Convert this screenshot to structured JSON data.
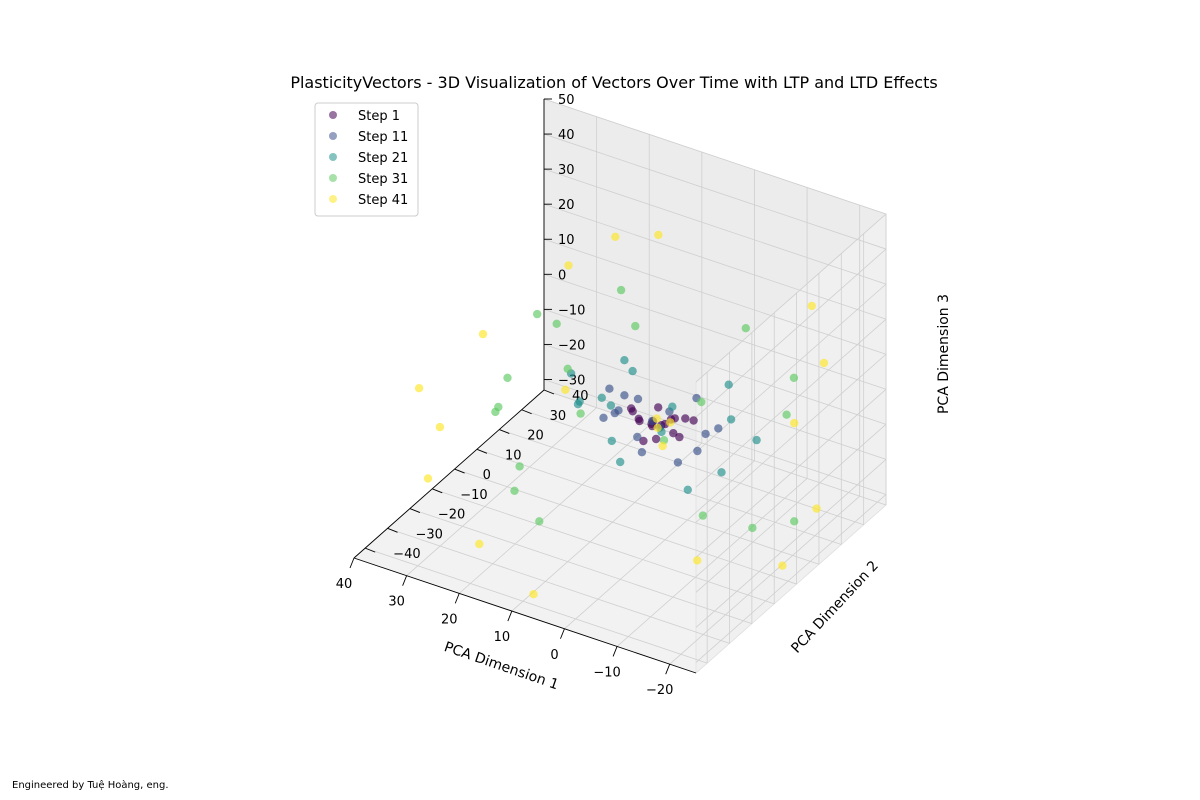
{
  "chart_data": {
    "type": "scatter",
    "projection": "3d",
    "title": "PlasticityVectors - 3D Visualization of Vectors Over Time with LTP and LTD Effects",
    "xlabel": "PCA Dimension 1",
    "ylabel": "PCA Dimension 2",
    "zlabel": "PCA Dimension 3",
    "xlim": [
      -25,
      40
    ],
    "ylim": [
      -45,
      40
    ],
    "zlim": [
      -33,
      50
    ],
    "x_ticks": [
      "−20",
      "−10",
      "0",
      "10",
      "20",
      "30",
      "40"
    ],
    "y_ticks": [
      "−40",
      "−30",
      "−20",
      "−10",
      "0",
      "10",
      "20",
      "30",
      "40"
    ],
    "z_ticks": [
      "−30",
      "−20",
      "−10",
      "0",
      "10",
      "20",
      "30",
      "40",
      "50"
    ],
    "grid": true,
    "legend_position": "top-left",
    "series": [
      {
        "name": "Step 1",
        "color": "#440154",
        "points": [
          [
            0,
            0,
            0
          ],
          [
            2,
            -1,
            -1
          ],
          [
            -1,
            2,
            1
          ],
          [
            3,
            1,
            -2
          ],
          [
            1,
            -3,
            2
          ],
          [
            -2,
            -1,
            -1
          ],
          [
            4,
            -2,
            0
          ],
          [
            2,
            3,
            -3
          ],
          [
            -3,
            2,
            2
          ],
          [
            5,
            0,
            -1
          ],
          [
            0,
            -4,
            -2
          ],
          [
            3,
            4,
            1
          ],
          [
            -4,
            -3,
            0
          ],
          [
            6,
            -1,
            2
          ],
          [
            1,
            5,
            -2
          ],
          [
            7,
            2,
            -1
          ],
          [
            -5,
            1,
            3
          ],
          [
            2,
            -5,
            -3
          ]
        ]
      },
      {
        "name": "Step 11",
        "color": "#3b528b",
        "points": [
          [
            4,
            -3,
            -4
          ],
          [
            6,
            2,
            3
          ],
          [
            -6,
            4,
            -2
          ],
          [
            8,
            -2,
            1
          ],
          [
            -2,
            -7,
            4
          ],
          [
            5,
            6,
            -5
          ],
          [
            -7,
            -2,
            -3
          ],
          [
            9,
            3,
            2
          ],
          [
            1,
            -8,
            -4
          ],
          [
            -3,
            7,
            5
          ],
          [
            10,
            -4,
            -1
          ],
          [
            7,
            -6,
            3
          ],
          [
            -8,
            5,
            0
          ],
          [
            3,
            9,
            -3
          ],
          [
            11,
            1,
            4
          ],
          [
            -5,
            -6,
            -5
          ]
        ]
      },
      {
        "name": "Step 21",
        "color": "#21918c",
        "points": [
          [
            8,
            -5,
            -6
          ],
          [
            -10,
            6,
            3
          ],
          [
            12,
            4,
            -3
          ],
          [
            -4,
            -11,
            6
          ],
          [
            10,
            9,
            5
          ],
          [
            -12,
            -3,
            -6
          ],
          [
            14,
            -6,
            2
          ],
          [
            3,
            -13,
            -5
          ],
          [
            -7,
            12,
            8
          ],
          [
            15,
            7,
            -4
          ],
          [
            12,
            -10,
            6
          ],
          [
            -14,
            8,
            -2
          ],
          [
            5,
            15,
            -6
          ],
          [
            17,
            -2,
            7
          ],
          [
            -9,
            -11,
            -8
          ],
          [
            9,
            3,
            12
          ]
        ]
      },
      {
        "name": "Step 31",
        "color": "#5ec962",
        "points": [
          [
            -18,
            12,
            5
          ],
          [
            20,
            -18,
            -12
          ],
          [
            15,
            22,
            8
          ],
          [
            -14,
            -16,
            -10
          ],
          [
            24,
            8,
            12
          ],
          [
            -6,
            22,
            18
          ],
          [
            18,
            -25,
            -14
          ],
          [
            28,
            -10,
            -5
          ],
          [
            -20,
            -8,
            -15
          ],
          [
            10,
            -20,
            22
          ],
          [
            22,
            14,
            -16
          ],
          [
            -16,
            20,
            10
          ],
          [
            26,
            4,
            16
          ],
          [
            5,
            28,
            -12
          ],
          [
            12,
            -28,
            -18
          ],
          [
            -10,
            -24,
            14
          ],
          [
            30,
            -4,
            -8
          ],
          [
            -22,
            6,
            -20
          ],
          [
            16,
            18,
            20
          ],
          [
            24,
            -14,
            9
          ]
        ]
      },
      {
        "name": "Step 41",
        "color": "#fde725",
        "points": [
          [
            2,
            1,
            0
          ],
          [
            -1,
            0,
            1
          ],
          [
            1,
            -1,
            -1
          ],
          [
            -22,
            16,
            -22
          ],
          [
            34,
            -26,
            -18
          ],
          [
            12,
            6,
            44
          ],
          [
            38,
            8,
            2
          ],
          [
            -18,
            -28,
            -14
          ],
          [
            20,
            -36,
            -24
          ],
          [
            -20,
            24,
            14
          ],
          [
            30,
            26,
            -20
          ],
          [
            34,
            -30,
            10
          ],
          [
            -24,
            -4,
            -26
          ],
          [
            14,
            30,
            30
          ],
          [
            -14,
            -34,
            20
          ],
          [
            36,
            -16,
            -10
          ],
          [
            8,
            -40,
            -30
          ],
          [
            -16,
            28,
            26
          ],
          [
            26,
            18,
            22
          ],
          [
            -22,
            6,
            8
          ]
        ]
      }
    ]
  },
  "footer": "Engineered by Tuệ Hoàng, eng."
}
